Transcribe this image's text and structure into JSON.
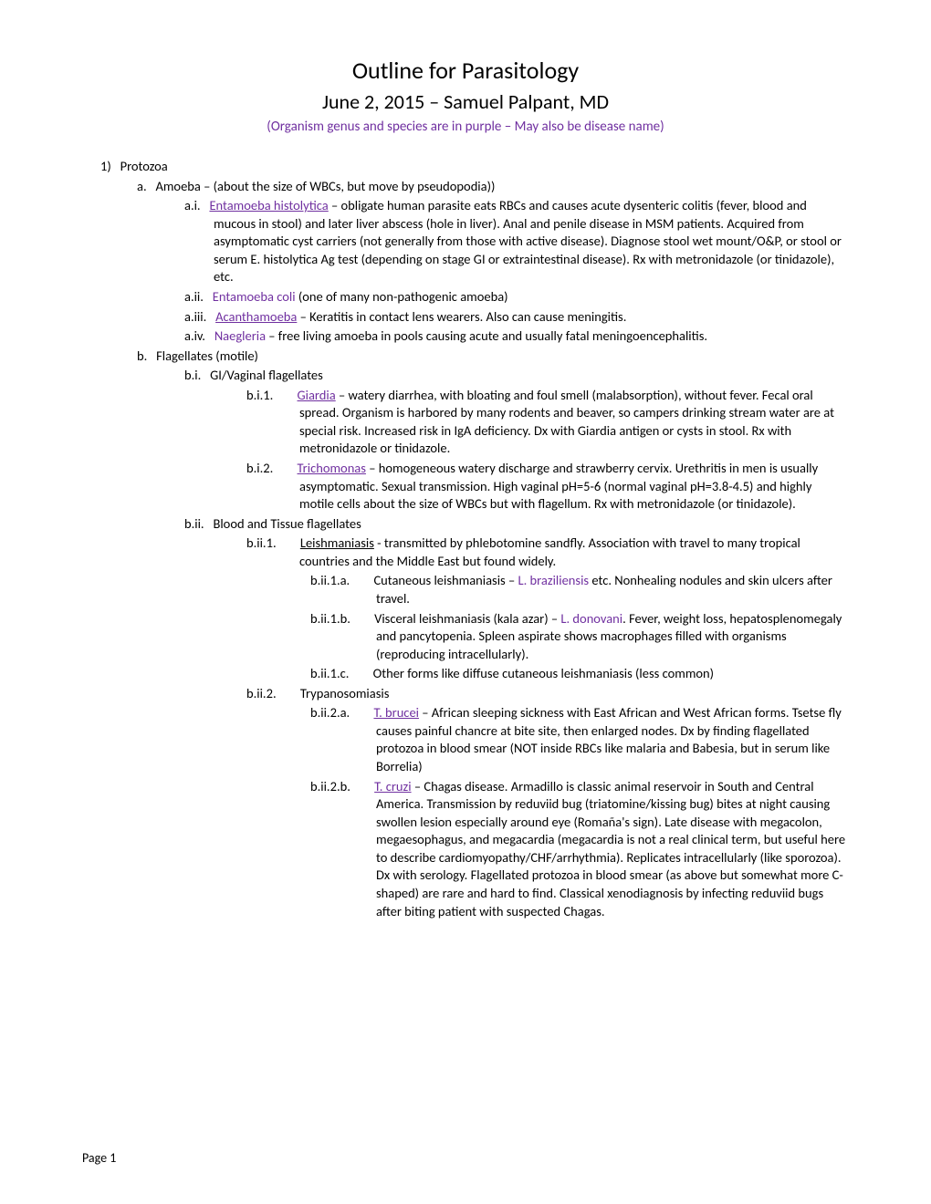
{
  "title": "Outline for Parasitology",
  "subtitle": "June 2, 2015 – Samuel Palpant, MD",
  "note": "(Organism genus and species are in purple – May also be disease name)",
  "footer": "Page 1",
  "colors": {
    "purple": "#7030a0",
    "text": "#000000",
    "bg": "#ffffff"
  },
  "fonts": {
    "body_family": "Calibri",
    "body_size": 14.5,
    "title_size": 26,
    "subtitle_size": 22,
    "note_size": 15,
    "line_height": 1.35
  },
  "outline": {
    "n1": "1)",
    "n1_text": "Protozoa",
    "a": "a.",
    "a_text": "Amoeba – (about the size of WBCs, but move by pseudopodia))",
    "ai": "a.i.",
    "ai_org": "Entamoeba histolytica",
    "ai_text": " – obligate human parasite eats RBCs and causes acute dysenteric colitis (fever, blood and mucous in stool) and later liver abscess (hole in liver).  Anal and penile disease in MSM patients.  Acquired from asymptomatic cyst carriers (not generally from those with active disease).  Diagnose stool wet mount/O&P, or stool or serum E. histolytica Ag test (depending on stage GI or extraintestinal disease).  Rx with metronidazole (or tinidazole), etc.",
    "aii": "a.ii.",
    "aii_org": "Entamoeba coli",
    "aii_text": " (one of many non-pathogenic amoeba)",
    "aiii": "a.iii.",
    "aiii_org": "Acanthamoeba",
    "aiii_text": " – Keratitis in contact lens wearers.  Also can cause meningitis.",
    "aiv": "a.iv.",
    "aiv_org": "Naegleria",
    "aiv_text": " – free living amoeba in pools causing acute and usually fatal meningoencephalitis.",
    "b": "b.",
    "b_text": "Flagellates (motile)",
    "bi": "b.i.",
    "bi_text": "GI/Vaginal flagellates",
    "bi1": "b.i.1.",
    "bi1_org": "Giardia",
    "bi1_text": " – watery diarrhea, with bloating and foul smell (malabsorption), without fever.  Fecal oral spread.  Organism is harbored by many rodents and beaver, so campers drinking stream water are at special risk.  Increased risk in IgA deficiency.  Dx with Giardia antigen or cysts in stool.  Rx with metronidazole or tinidazole.",
    "bi2": "b.i.2.",
    "bi2_org": "Trichomonas",
    "bi2_text": " – homogeneous watery discharge and strawberry cervix.  Urethritis in men is usually asymptomatic.  Sexual transmission.  High vaginal pH=5-6 (normal vaginal pH=3.8-4.5) and highly motile cells about the size of WBCs but with flagellum.  Rx with metronidazole (or tinidazole).",
    "bii": "b.ii.",
    "bii_text": "Blood and Tissue flagellates",
    "bii1": "b.ii.1.",
    "bii1_head": "Leishmaniasis",
    "bii1_text": " - transmitted by phlebotomine sandfly.  Association with travel to many tropical countries and the Middle East but found widely.",
    "bii1a": "b.ii.1.a.",
    "bii1a_pre": "Cutaneous leishmaniasis – ",
    "bii1a_org": "L. braziliensis",
    "bii1a_text": " etc.  Nonhealing nodules and skin ulcers after travel.",
    "bii1b": "b.ii.1.b.",
    "bii1b_pre": "Visceral leishmaniasis (kala azar) – ",
    "bii1b_org": "L. donovani",
    "bii1b_text": ".  Fever, weight loss, hepatosplenomegaly and pancytopenia.  Spleen aspirate shows macrophages filled with organisms (reproducing intracellularly).",
    "bii1c": "b.ii.1.c.",
    "bii1c_text": "Other forms like diffuse cutaneous leishmaniasis (less common)",
    "bii2": "b.ii.2.",
    "bii2_text": "Trypanosomiasis",
    "bii2a": "b.ii.2.a.",
    "bii2a_org": "T. brucei",
    "bii2a_text": " – African sleeping sickness with East African and West African forms.  Tsetse fly causes painful chancre at bite site, then enlarged nodes.  Dx by finding flagellated protozoa in blood smear (NOT inside RBCs like malaria and Babesia, but in serum like Borrelia)",
    "bii2b": "b.ii.2.b.",
    "bii2b_org": "T. cruzi",
    "bii2b_text": " – Chagas disease. Armadillo is classic animal reservoir in South and Central America.  Transmission by reduviid bug (triatomine/kissing bug) bites at night causing swollen lesion especially around eye (Romaña's sign).  Late disease with megacolon, megaesophagus, and megacardia (megacardia is not a real clinical term, but useful here to describe cardiomyopathy/CHF/arrhythmia).  Replicates intracellularly (like sporozoa).  Dx with serology.  Flagellated protozoa in blood smear (as above but somewhat more C-shaped) are rare and hard to find.  Classical xenodiagnosis by infecting reduviid bugs after biting patient with suspected Chagas."
  }
}
